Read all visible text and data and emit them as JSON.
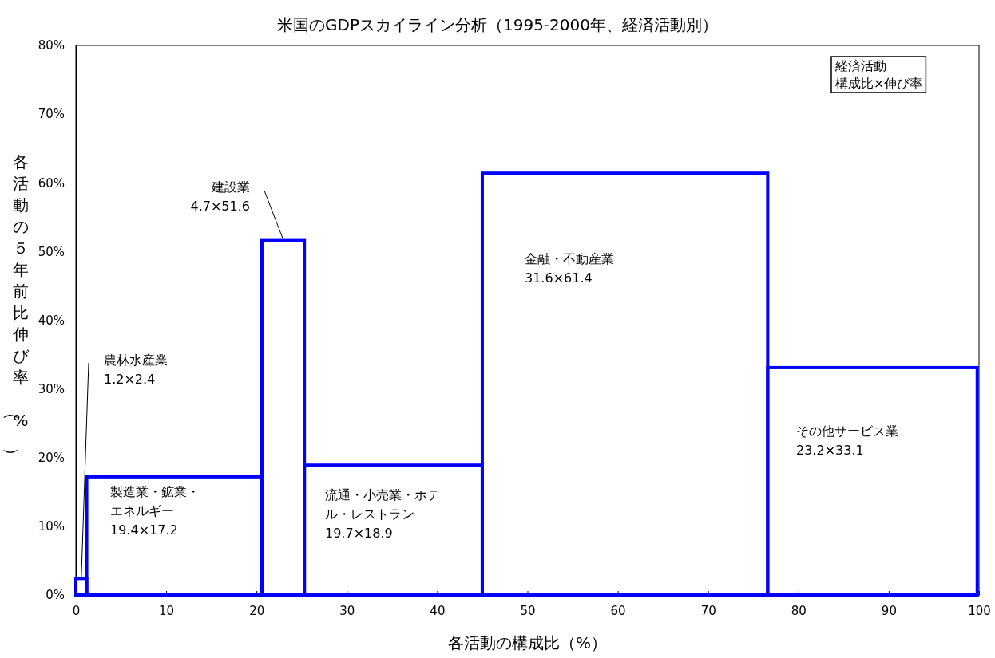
{
  "chart_data": {
    "type": "histogram",
    "title": "米国のGDPスカイライン分析（1995-2000年、経済活動別）",
    "xlabel": "各活動の構成比（%）",
    "ylabel": "各活動の５年前比伸び率（%）",
    "bins": [
      0,
      1.2,
      20.6,
      25.3,
      45.0,
      76.6,
      99.8
    ],
    "values": [
      2.4,
      17.2,
      51.6,
      18.9,
      61.4,
      33.1
    ],
    "color": "#0000ff",
    "xlim": [
      0,
      100
    ],
    "xticks": [
      0,
      10,
      20,
      30,
      40,
      50,
      60,
      70,
      80,
      90,
      100
    ],
    "ylim": [
      0,
      80
    ],
    "yticks": [
      {
        "value": 0,
        "label": "0%"
      },
      {
        "value": 10,
        "label": "10%"
      },
      {
        "value": 20,
        "label": "20%"
      },
      {
        "value": 30,
        "label": "30%"
      },
      {
        "value": 40,
        "label": "40%"
      },
      {
        "value": 50,
        "label": "50%"
      },
      {
        "value": 60,
        "label": "60%"
      },
      {
        "value": 70,
        "label": "70%"
      },
      {
        "value": 80,
        "label": "80%"
      }
    ],
    "grid": false,
    "annotations": [
      "経済活動構成比×伸び率",
      {
        "text": "農林水産業1.2×2.4",
        "x": 0.6,
        "y": 2.4
      },
      "製造業・鉱業・エネルギー19.4×17.2",
      {
        "text": "建設業4.7×51.6",
        "x": 23.0,
        "y": 51.6
      },
      "流通・小売業・ホテル・レストラン19.7×18.9",
      "金融・不動産業31.6×61.4",
      "その他サービス業23.2×33.1"
    ]
  }
}
